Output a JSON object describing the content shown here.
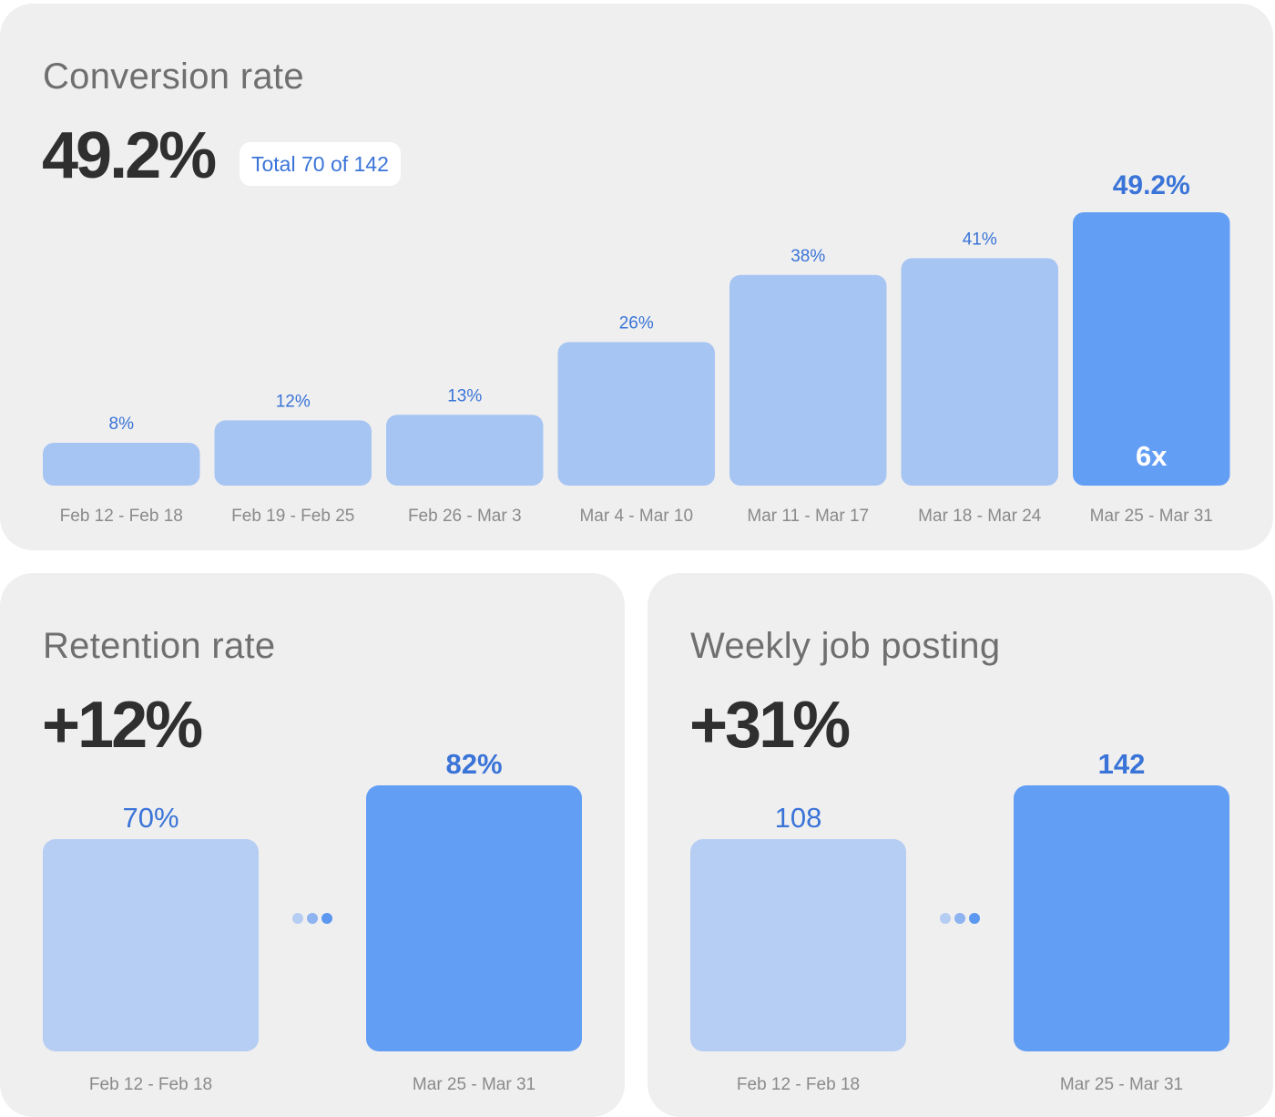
{
  "colors": {
    "bar_light": "#a7c5f3",
    "bar_highlight": "#639ef5",
    "label_blue": "#3a74d8",
    "tick_gray": "#8a8a8a",
    "dot_light": "#b5cdf3",
    "dot_mid": "#8db3f1",
    "dot_dark": "#5c97f0"
  },
  "conversion": {
    "title": "Conversion rate",
    "value": "49.2%",
    "badge": "Total 70 of 142",
    "bar_inside_label": "6x"
  },
  "retention": {
    "title": "Retention rate",
    "value": "+12%"
  },
  "job_posting": {
    "title": "Weekly job posting",
    "value": "+31%"
  },
  "chart_data": [
    {
      "type": "bar",
      "title": "Conversion rate",
      "categories": [
        "Feb 12 - Feb 18",
        "Feb 19 - Feb 25",
        "Feb 26 - Mar 3",
        "Mar 4 - Mar 10",
        "Mar 11 - Mar 17",
        "Mar 18 - Mar 24",
        "Mar 25 - Mar 31"
      ],
      "values": [
        8,
        12,
        13,
        26,
        38,
        41,
        49.2
      ],
      "data_labels": [
        "8%",
        "12%",
        "13%",
        "26%",
        "38%",
        "41%",
        "49.2%"
      ],
      "highlight_index": 6,
      "ylim": [
        0,
        49.2
      ]
    },
    {
      "type": "bar",
      "title": "Retention rate",
      "categories": [
        "Feb 12 - Feb 18",
        "Mar 25 - Mar 31"
      ],
      "values": [
        70,
        82
      ],
      "data_labels": [
        "70%",
        "82%"
      ],
      "highlight_index": 1
    },
    {
      "type": "bar",
      "title": "Weekly job posting",
      "categories": [
        "Feb 12 - Feb 18",
        "Mar 25 - Mar 31"
      ],
      "values": [
        108,
        142
      ],
      "data_labels": [
        "108",
        "142"
      ],
      "highlight_index": 1
    }
  ]
}
